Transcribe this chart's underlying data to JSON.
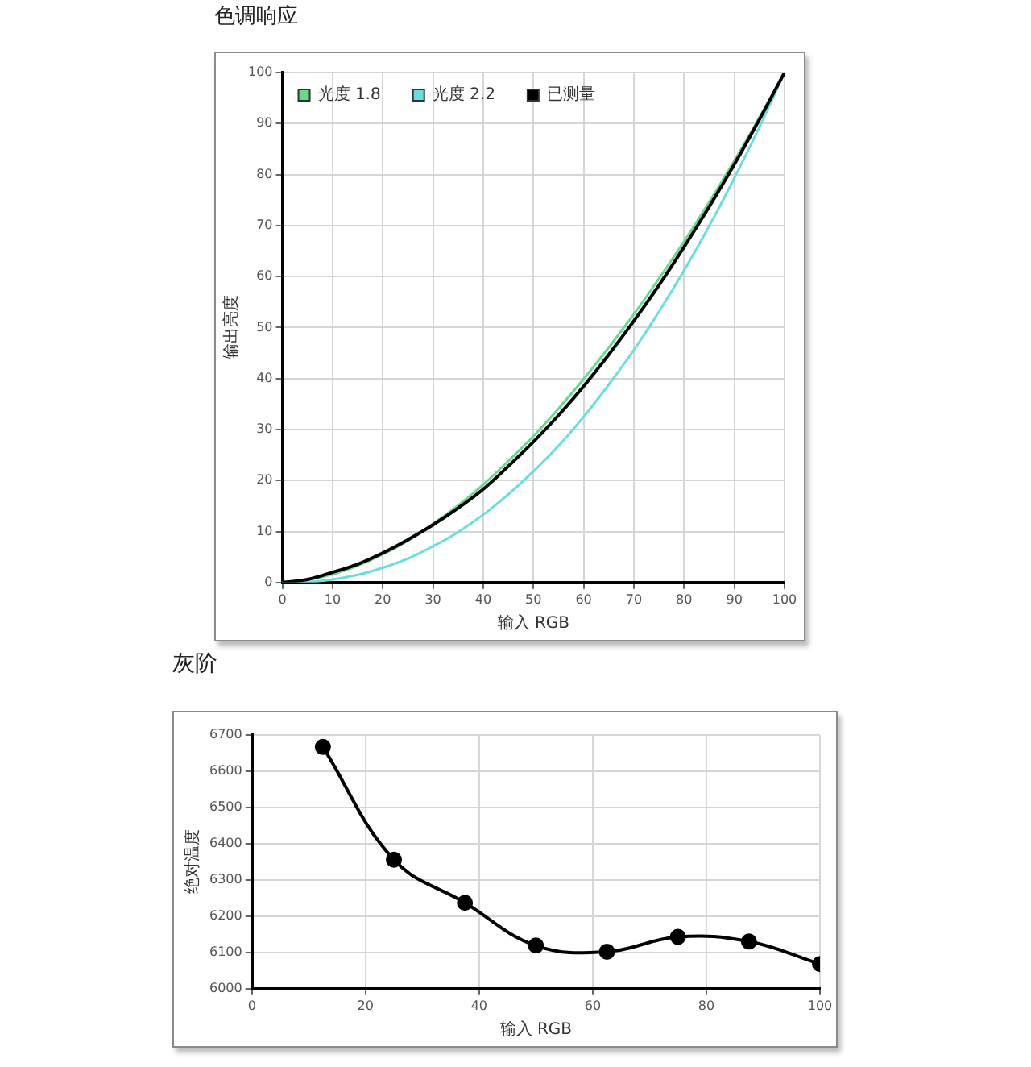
{
  "chart_data": [
    {
      "type": "line",
      "title": "色调响应",
      "xlabel": "输入 RGB",
      "ylabel": "输出亮度",
      "x": [
        0,
        5,
        10,
        15,
        20,
        25,
        30,
        35,
        40,
        45,
        50,
        55,
        60,
        65,
        70,
        75,
        80,
        85,
        90,
        95,
        100
      ],
      "series": [
        {
          "name": "光度 1.8",
          "color": "#66d98a",
          "values": [
            0,
            0.5,
            1.6,
            3.3,
            5.5,
            8.2,
            11.5,
            15.1,
            19.2,
            23.8,
            28.7,
            34.1,
            39.9,
            46.1,
            52.6,
            59.6,
            66.9,
            74.6,
            82.7,
            91.2,
            100
          ]
        },
        {
          "name": "光度 2.2",
          "color": "#6adede",
          "values": [
            0,
            0.1,
            0.6,
            1.5,
            2.9,
            4.7,
            7.1,
            9.9,
            13.3,
            17.3,
            21.8,
            26.8,
            32.5,
            38.8,
            45.6,
            53.1,
            61.2,
            69.9,
            79.3,
            89.3,
            100
          ]
        },
        {
          "name": "已测量",
          "color": "#000000",
          "values": [
            0,
            0.6,
            2.0,
            3.6,
            5.8,
            8.4,
            11.3,
            14.6,
            18.3,
            22.8,
            27.6,
            32.8,
            38.5,
            44.7,
            51.3,
            58.3,
            65.8,
            73.7,
            82.0,
            90.8,
            100
          ]
        }
      ],
      "xlim": [
        0,
        100
      ],
      "ylim": [
        0,
        100
      ],
      "xticks": [
        0,
        10,
        20,
        30,
        40,
        50,
        60,
        70,
        80,
        90,
        100
      ],
      "yticks": [
        0,
        10,
        20,
        30,
        40,
        50,
        60,
        70,
        80,
        90,
        100
      ],
      "grid": true,
      "legend": "top left",
      "marker": "none",
      "line_style": "solid"
    },
    {
      "type": "line",
      "title": "灰阶",
      "xlabel": "输入 RGB",
      "ylabel": "绝对温度",
      "x": [
        12.5,
        25,
        37.5,
        50,
        62.5,
        75,
        87.5,
        100
      ],
      "values": [
        6667,
        6356,
        6237,
        6119,
        6102,
        6143,
        6130,
        6068
      ],
      "color": "#000000",
      "xlim": [
        0,
        100
      ],
      "ylim": [
        6000,
        6700
      ],
      "xticks": [
        0,
        20,
        40,
        60,
        80,
        100
      ],
      "yticks": [
        6000,
        6100,
        6200,
        6300,
        6400,
        6500,
        6600,
        6700
      ],
      "grid": true,
      "marker": "circle",
      "line_style": "solid"
    }
  ]
}
